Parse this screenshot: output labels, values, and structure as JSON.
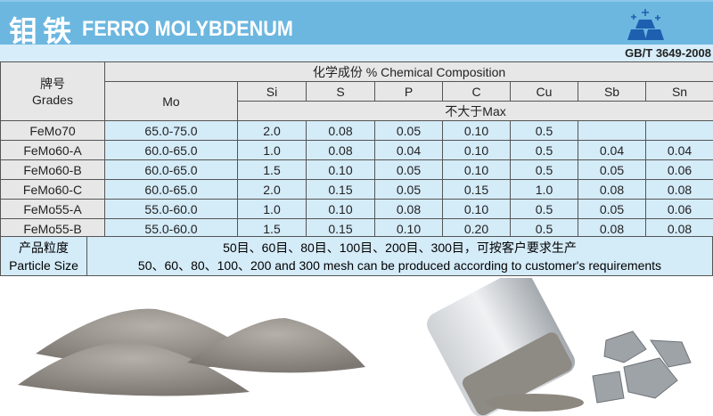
{
  "header": {
    "title_cn": "钼铁",
    "title_en": "FERRO MOLYBDENUM",
    "standard": "GB/T 3649-2008",
    "logo_icon": "stacked-ingots-icon",
    "accent": "#6cb7e0"
  },
  "table": {
    "grade_header_cn": "牌号",
    "grade_header_en": "Grades",
    "composition_header": "化学成份 % Chemical Composition",
    "columns": [
      "Mo",
      "Si",
      "S",
      "P",
      "C",
      "Cu",
      "Sb",
      "Sn"
    ],
    "max_label": "不大于Max",
    "rows": [
      {
        "grade": "FeMo70",
        "values": [
          "65.0-75.0",
          "2.0",
          "0.08",
          "0.05",
          "0.10",
          "0.5",
          "",
          ""
        ]
      },
      {
        "grade": "FeMo60-A",
        "values": [
          "60.0-65.0",
          "1.0",
          "0.08",
          "0.04",
          "0.10",
          "0.5",
          "0.04",
          "0.04"
        ]
      },
      {
        "grade": "FeMo60-B",
        "values": [
          "60.0-65.0",
          "1.5",
          "0.10",
          "0.05",
          "0.10",
          "0.5",
          "0.05",
          "0.06"
        ]
      },
      {
        "grade": "FeMo60-C",
        "values": [
          "60.0-65.0",
          "2.0",
          "0.15",
          "0.05",
          "0.15",
          "1.0",
          "0.08",
          "0.08"
        ]
      },
      {
        "grade": "FeMo55-A",
        "values": [
          "55.0-60.0",
          "1.0",
          "0.10",
          "0.08",
          "0.10",
          "0.5",
          "0.05",
          "0.06"
        ]
      },
      {
        "grade": "FeMo55-B",
        "values": [
          "55.0-60.0",
          "1.5",
          "0.15",
          "0.10",
          "0.20",
          "0.5",
          "0.08",
          "0.08"
        ]
      }
    ]
  },
  "particle": {
    "label_cn": "产品粒度",
    "label_en": "Particle Size",
    "text_cn": "50目、60目、80目、100目、200目、300目，可按客户要求生产",
    "text_en": "50、60、80、100、200 and 300 mesh can be produced according to customer's requirements"
  }
}
